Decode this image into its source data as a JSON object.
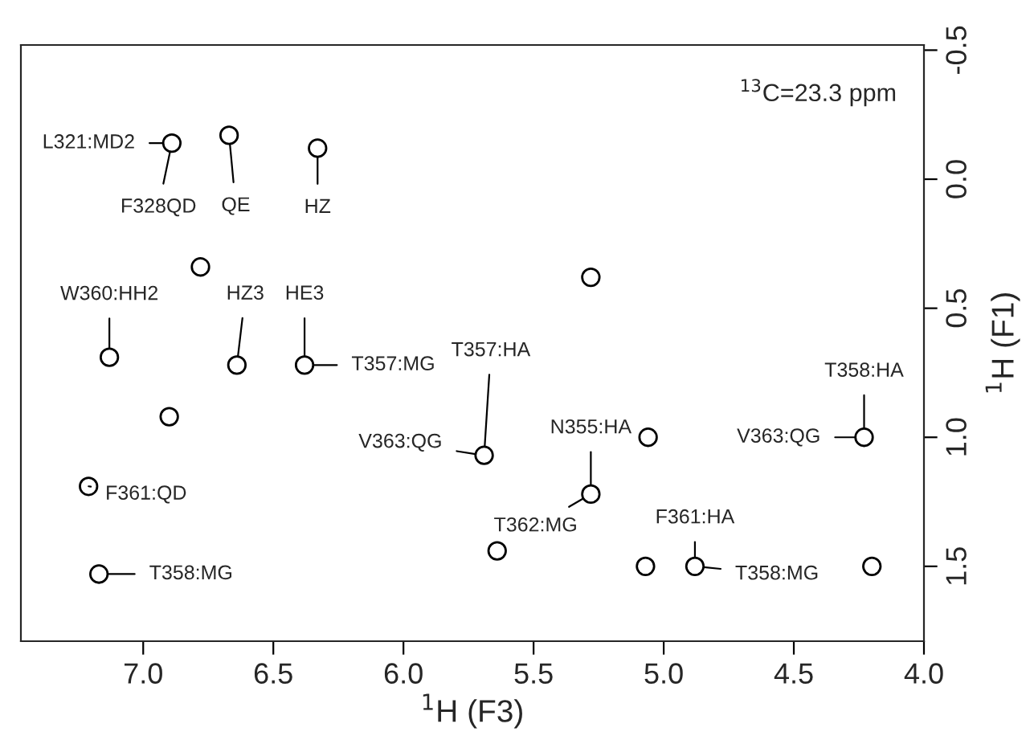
{
  "chart_data": {
    "type": "scatter",
    "xlabel": "$^{1}$H (F3)",
    "ylabel": "$^{1}$H (F1)",
    "xlim": [
      7.47,
      4.0
    ],
    "ylim": [
      1.79,
      -0.52
    ],
    "xticks": [
      {
        "value": 7.0,
        "label": "7.0"
      },
      {
        "value": 6.5,
        "label": "6.5"
      },
      {
        "value": 6.0,
        "label": "6.0"
      },
      {
        "value": 5.5,
        "label": "5.5"
      },
      {
        "value": 5.0,
        "label": "5.0"
      },
      {
        "value": 4.5,
        "label": "4.5"
      },
      {
        "value": 4.0,
        "label": "4.0"
      }
    ],
    "yticks": [
      {
        "value": -0.5,
        "label": "-0.5"
      },
      {
        "value": 0.0,
        "label": "0.0"
      },
      {
        "value": 0.5,
        "label": "0.5"
      },
      {
        "value": 1.0,
        "label": "1.0"
      },
      {
        "value": 1.5,
        "label": "1.5"
      }
    ],
    "marker": "circle",
    "grid": false,
    "series": [
      {
        "color": "#000000",
        "x": [
          6.89,
          6.67,
          6.33,
          6.78,
          7.13,
          6.64,
          6.38,
          6.9,
          5.69,
          5.64,
          7.21,
          7.17,
          5.28,
          5.28,
          5.06,
          5.07,
          4.88,
          4.23,
          4.2
        ],
        "values": [
          -0.14,
          -0.17,
          -0.12,
          0.34,
          0.69,
          0.72,
          0.72,
          0.92,
          1.07,
          1.44,
          1.19,
          1.53,
          0.38,
          1.22,
          1.0,
          1.5,
          1.5,
          1.0,
          1.5
        ]
      }
    ],
    "annotations": [
      {
        "text": "L321:MD2",
        "x": 6.89,
        "y": -0.14
      },
      {
        "text": "F328QD",
        "x": 6.89,
        "y": -0.14
      },
      {
        "text": "QE",
        "x": 6.67,
        "y": -0.17
      },
      {
        "text": "HZ",
        "x": 6.33,
        "y": -0.12
      },
      {
        "text": "W360:HH2",
        "x": 7.13,
        "y": 0.69
      },
      {
        "text": "HZ3",
        "x": 6.64,
        "y": 0.72
      },
      {
        "text": "HE3",
        "x": 6.38,
        "y": 0.72
      },
      {
        "text": "T357:MG",
        "x": 6.38,
        "y": 0.72
      },
      {
        "text": "T357:HA",
        "x": 5.69,
        "y": 1.07
      },
      {
        "text": "V363:QG",
        "x": 5.69,
        "y": 1.07
      },
      {
        "text": "N355:HA",
        "x": 5.28,
        "y": 1.22
      },
      {
        "text": "T362:MG",
        "x": 5.28,
        "y": 1.22
      },
      {
        "text": "F361:QD",
        "x": 7.21,
        "y": 1.19
      },
      {
        "text": "T358:MG",
        "x": 7.17,
        "y": 1.53
      },
      {
        "text": "F361:HA",
        "x": 4.88,
        "y": 1.5
      },
      {
        "text": "T358:MG",
        "x": 4.88,
        "y": 1.5
      },
      {
        "text": "T358:HA",
        "x": 4.23,
        "y": 1.0
      },
      {
        "text": "V363:QG",
        "x": 4.23,
        "y": 1.0
      },
      "$^{13}$C=23.3 ppm"
    ]
  }
}
